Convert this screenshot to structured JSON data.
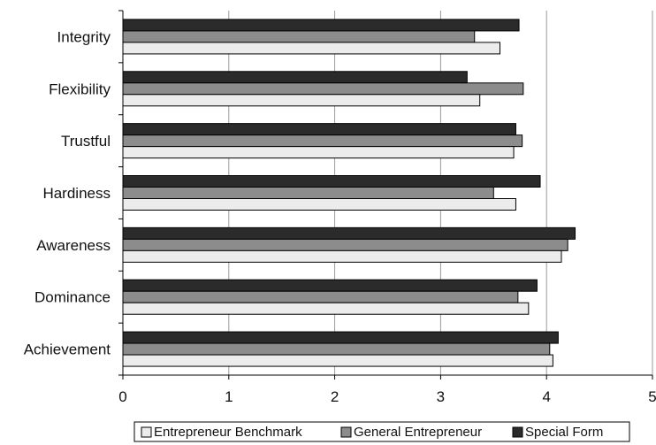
{
  "chart_data": {
    "type": "bar",
    "orientation": "horizontal",
    "categories": [
      "Integrity",
      "Flexibility",
      "Trustful",
      "Hardiness",
      "Awareness",
      "Dominance",
      "Achievement"
    ],
    "series": [
      {
        "name": "Entrepreneur Benchmark",
        "color": "#ececec",
        "values": [
          3.56,
          3.37,
          3.69,
          3.71,
          4.14,
          3.83,
          4.06
        ]
      },
      {
        "name": "General Entrepreneur",
        "color": "#8c8c8c",
        "values": [
          3.32,
          3.78,
          3.77,
          3.5,
          4.2,
          3.73,
          4.03
        ]
      },
      {
        "name": "Special Form",
        "color": "#2b2b2b",
        "values": [
          3.74,
          3.25,
          3.71,
          3.94,
          4.27,
          3.91,
          4.11
        ]
      }
    ],
    "xlim": [
      0,
      5
    ],
    "xticks": [
      "0",
      "1",
      "2",
      "3",
      "4",
      "5"
    ],
    "grid": true,
    "legend_position": "bottom"
  }
}
